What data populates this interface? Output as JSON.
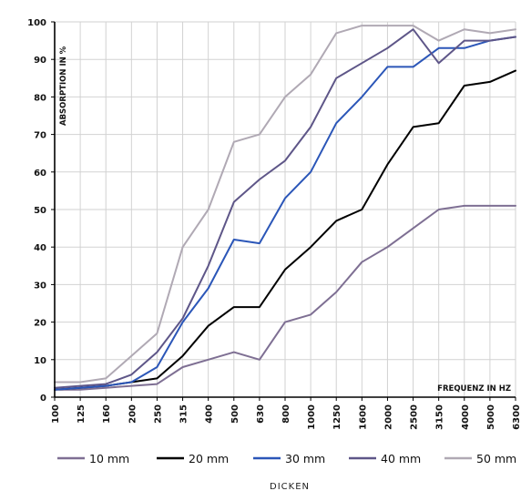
{
  "chart_data": {
    "type": "line",
    "ylabel": "ABSORPTION IN %",
    "xlabel": "FREQUENZ IN HZ",
    "legend_title": "DICKEN",
    "legend_position": "bottom",
    "grid": true,
    "ylim": [
      0,
      100
    ],
    "yticks": [
      "0",
      "10",
      "20",
      "30",
      "40",
      "50",
      "60",
      "70",
      "80",
      "90",
      "100"
    ],
    "categories": [
      "100",
      "125",
      "160",
      "200",
      "250",
      "315",
      "400",
      "500",
      "630",
      "800",
      "1000",
      "1250",
      "1600",
      "2000",
      "2500",
      "3150",
      "4000",
      "5000",
      "6300"
    ],
    "series": [
      {
        "name": "10 mm",
        "color": "#7e6f93",
        "values": [
          2,
          2,
          2.5,
          3,
          3.5,
          8,
          10,
          12,
          10,
          20,
          22,
          28,
          36,
          40,
          45,
          50,
          51,
          51,
          51
        ]
      },
      {
        "name": "20 mm",
        "color": "#000000",
        "values": [
          2,
          2.5,
          3,
          4,
          5,
          11,
          19,
          24,
          24,
          34,
          40,
          47,
          50,
          62,
          72,
          73,
          83,
          84,
          87
        ]
      },
      {
        "name": "30 mm",
        "color": "#2b56b8",
        "values": [
          2,
          2.5,
          3,
          4,
          8,
          20,
          29,
          42,
          41,
          53,
          60,
          73,
          80,
          88,
          88,
          93,
          93,
          95,
          96
        ]
      },
      {
        "name": "40 mm",
        "color": "#5e5688",
        "values": [
          2.5,
          3,
          3.5,
          6,
          12,
          21,
          35,
          52,
          58,
          63,
          72,
          85,
          89,
          93,
          98,
          89,
          95,
          95,
          96
        ]
      },
      {
        "name": "50 mm",
        "color": "#b0a9b4",
        "values": [
          4,
          4,
          5,
          11,
          17,
          40,
          50,
          68,
          70,
          80,
          86,
          97,
          99,
          99,
          99,
          95,
          98,
          97,
          98
        ]
      }
    ]
  }
}
